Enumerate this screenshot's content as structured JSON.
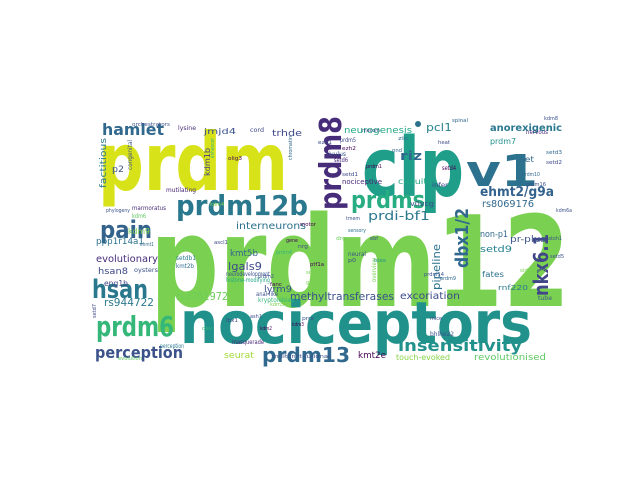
{
  "word_cloud": {
    "words": [
      {
        "text": "prdm12",
        "color": "#7ad151"
      },
      {
        "text": "prdm",
        "color": "#d8e219"
      },
      {
        "text": "nociceptors",
        "color": "#21918c"
      },
      {
        "text": "clp",
        "color": "#1f9e89"
      },
      {
        "text": "v1",
        "color": "#2c728e"
      },
      {
        "text": "prdm12b",
        "color": "#2a788e"
      },
      {
        "text": "prdm6",
        "color": "#35b779"
      },
      {
        "text": "prdm13",
        "color": "#31688e"
      },
      {
        "text": "prdm8",
        "color": "#472c7a"
      },
      {
        "text": "prdms",
        "color": "#27ad81"
      },
      {
        "text": "pain",
        "color": "#33638d"
      },
      {
        "text": "hsan",
        "color": "#2a788e"
      },
      {
        "text": "hamlet",
        "color": "#31688e"
      },
      {
        "text": "perception",
        "color": "#3b528b"
      },
      {
        "text": "insensitivity",
        "color": "#21918c"
      },
      {
        "text": "nkx6.1",
        "color": "#404688"
      },
      {
        "text": "dbx1/2",
        "color": "#31688e"
      },
      {
        "text": "ehmt2/g9a",
        "color": "#33638d"
      },
      {
        "text": "anorexigenic",
        "color": "#2a788e"
      },
      {
        "text": "riz",
        "color": "#31688e"
      },
      {
        "text": "pcl1",
        "color": "#26828e"
      },
      {
        "text": "neurogenesis",
        "color": "#22a884"
      },
      {
        "text": "prdi-bf1",
        "color": "#2a788e"
      },
      {
        "text": "interneurons",
        "color": "#2c728e"
      },
      {
        "text": "methyltransferases",
        "color": "#3b528b"
      },
      {
        "text": "excoriation",
        "color": "#3e4989"
      },
      {
        "text": "evolutionary",
        "color": "#472d7b"
      },
      {
        "text": "rs944722",
        "color": "#2a788e"
      },
      {
        "text": "rs3751972",
        "color": "#6ccd5a"
      },
      {
        "text": "rs8069176",
        "color": "#31688e"
      },
      {
        "text": "pipeline",
        "color": "#2c728e"
      },
      {
        "text": "revolutionised",
        "color": "#5ec962"
      },
      {
        "text": "touch-evoked",
        "color": "#86d549"
      },
      {
        "text": "lgals9",
        "color": "#3e4989"
      },
      {
        "text": "kmt5b",
        "color": "#33638d"
      },
      {
        "text": "kmt2e",
        "color": "#440154"
      },
      {
        "text": "seurat",
        "color": "#a0da39"
      },
      {
        "text": "ppp1r14a1",
        "color": "#2c728e"
      },
      {
        "text": "hsan8",
        "color": "#3e4989"
      },
      {
        "text": "jmjd4",
        "color": "#3b528b"
      },
      {
        "text": "trhde",
        "color": "#3e4989"
      },
      {
        "text": "factitious",
        "color": "#2a788e"
      },
      {
        "text": "lyrm9",
        "color": "#3b528b"
      },
      {
        "text": "setd9",
        "color": "#26828e"
      },
      {
        "text": "non-p1",
        "color": "#31688e"
      },
      {
        "text": "pr-plus",
        "color": "#3b528b"
      },
      {
        "text": "prdm7",
        "color": "#21918c"
      },
      {
        "text": "circuits",
        "color": "#22a884"
      },
      {
        "text": "eng1b",
        "color": "#414487"
      },
      {
        "text": "kdm9",
        "color": "#7ad151"
      },
      {
        "text": "kdm1b",
        "color": "#414487"
      },
      {
        "text": "nociceptive",
        "color": "#482878"
      },
      {
        "text": "fates",
        "color": "#2c728e"
      },
      {
        "text": "p2",
        "color": "#3b528b"
      },
      {
        "text": "v0vcg",
        "color": "#3e4989"
      },
      {
        "text": "kryptolebias",
        "color": "#35b779"
      },
      {
        "text": "perception",
        "color": "#2a788e"
      },
      {
        "text": "anal-like",
        "color": "#3b528b"
      },
      {
        "text": "histone-modifying",
        "color": "#22a884"
      },
      {
        "text": "neurodevelopment",
        "color": "#3b528b"
      },
      {
        "text": "rivulus",
        "color": "#3b528b"
      },
      {
        "text": "overview",
        "color": "#7ad151"
      },
      {
        "text": "setd6",
        "color": "#482878"
      },
      {
        "text": "setd4",
        "color": "#440154"
      },
      {
        "text": "prdm5",
        "color": "#3e4989"
      },
      {
        "text": "nervous",
        "color": "#482878"
      },
      {
        "text": "masquerade",
        "color": "#482878"
      },
      {
        "text": "multiinstitutional",
        "color": "#3b528b"
      },
      {
        "text": "marmoratus",
        "color": "#472d7b"
      },
      {
        "text": "mutilating",
        "color": "#482878"
      },
      {
        "text": "congenital",
        "color": "#3b528b"
      },
      {
        "text": "orchestrators",
        "color": "#3b528b"
      },
      {
        "text": "lysine",
        "color": "#472d7b"
      },
      {
        "text": "evolution",
        "color": "#5ec962"
      },
      {
        "text": "infer",
        "color": "#3e4989"
      },
      {
        "text": "sidechain",
        "color": "#7ad151"
      },
      {
        "text": "setdb1",
        "color": "#2a788e"
      },
      {
        "text": "kmt2b",
        "color": "#31688e"
      },
      {
        "text": "oysters",
        "color": "#3b528b"
      },
      {
        "text": "prdm1",
        "color": "#440154"
      },
      {
        "text": "prdm10",
        "color": "#31688e"
      },
      {
        "text": "set",
        "color": "#31688e"
      },
      {
        "text": "rnf220",
        "color": "#2a788e"
      },
      {
        "text": "tube",
        "color": "#3b528b"
      },
      {
        "text": "neural",
        "color": "#3b528b"
      },
      {
        "text": "cord",
        "color": "#3e4989"
      },
      {
        "text": "spinal",
        "color": "#31688e"
      },
      {
        "text": "kdm6",
        "color": "#5ec962"
      },
      {
        "text": "prdm9",
        "color": "#31688e"
      },
      {
        "text": "setd3",
        "color": "#31688e"
      },
      {
        "text": "setd2",
        "color": "#3e4989"
      },
      {
        "text": "bhlhe22",
        "color": "#3b528b"
      },
      {
        "text": "mecom",
        "color": "#3e4989"
      },
      {
        "text": "setd1",
        "color": "#3e4989"
      },
      {
        "text": "ezh2",
        "color": "#440154"
      },
      {
        "text": "ezh1",
        "color": "#3e4989"
      },
      {
        "text": "zic",
        "color": "#31688e"
      },
      {
        "text": "p0",
        "color": "#3e4989"
      },
      {
        "text": "pnd",
        "color": "#31688e"
      },
      {
        "text": "motor",
        "color": "#440154"
      },
      {
        "text": "sox21",
        "color": "#7ad151"
      },
      {
        "text": "gpr153",
        "color": "#7ad151"
      },
      {
        "text": "sensory",
        "color": "#2c728e"
      },
      {
        "text": "fanc",
        "color": "#440154"
      },
      {
        "text": "tmem",
        "color": "#3b528b"
      },
      {
        "text": "enhancer",
        "color": "#35b779"
      },
      {
        "text": "loss",
        "color": "#21918c"
      },
      {
        "text": "chromatin",
        "color": "#31688e"
      },
      {
        "text": "heat",
        "color": "#3e4989"
      },
      {
        "text": "mice",
        "color": "#3e4989"
      },
      {
        "text": "ptf1a",
        "color": "#440154"
      },
      {
        "text": "prdm14",
        "color": "#3b528b"
      },
      {
        "text": "kdm4",
        "color": "#7ad151"
      },
      {
        "text": "drg",
        "color": "#6ccd5a"
      },
      {
        "text": "gene",
        "color": "#440154"
      },
      {
        "text": "kdm5",
        "color": "#7ad151"
      },
      {
        "text": "kdm6a",
        "color": "#3b528b"
      },
      {
        "text": "kdm2",
        "color": "#440154"
      },
      {
        "text": "prdm16",
        "color": "#3b528b"
      },
      {
        "text": "prdm4",
        "color": "#35b779"
      },
      {
        "text": "ebf",
        "color": "#3e4989"
      },
      {
        "text": "kdm3",
        "color": "#440154"
      },
      {
        "text": "prdm2",
        "color": "#3b528b"
      },
      {
        "text": "setd7",
        "color": "#3e4989"
      },
      {
        "text": "setd5",
        "color": "#3b528b"
      },
      {
        "text": "ash1",
        "color": "#3e4989"
      },
      {
        "text": "prrx",
        "color": "#3b528b"
      },
      {
        "text": "dev",
        "color": "#35b779"
      },
      {
        "text": "nrg",
        "color": "#3e4989"
      },
      {
        "text": "kdm8",
        "color": "#3b528b"
      },
      {
        "text": "ehmt1",
        "color": "#31688e"
      },
      {
        "text": "atoh1",
        "color": "#3b528b"
      },
      {
        "text": "olig3",
        "color": "#440154"
      },
      {
        "text": "ascl1",
        "color": "#3e4989"
      },
      {
        "text": "lbx1",
        "color": "#3e4989"
      },
      {
        "text": "phylogeny",
        "color": "#3b528b"
      }
    ]
  }
}
